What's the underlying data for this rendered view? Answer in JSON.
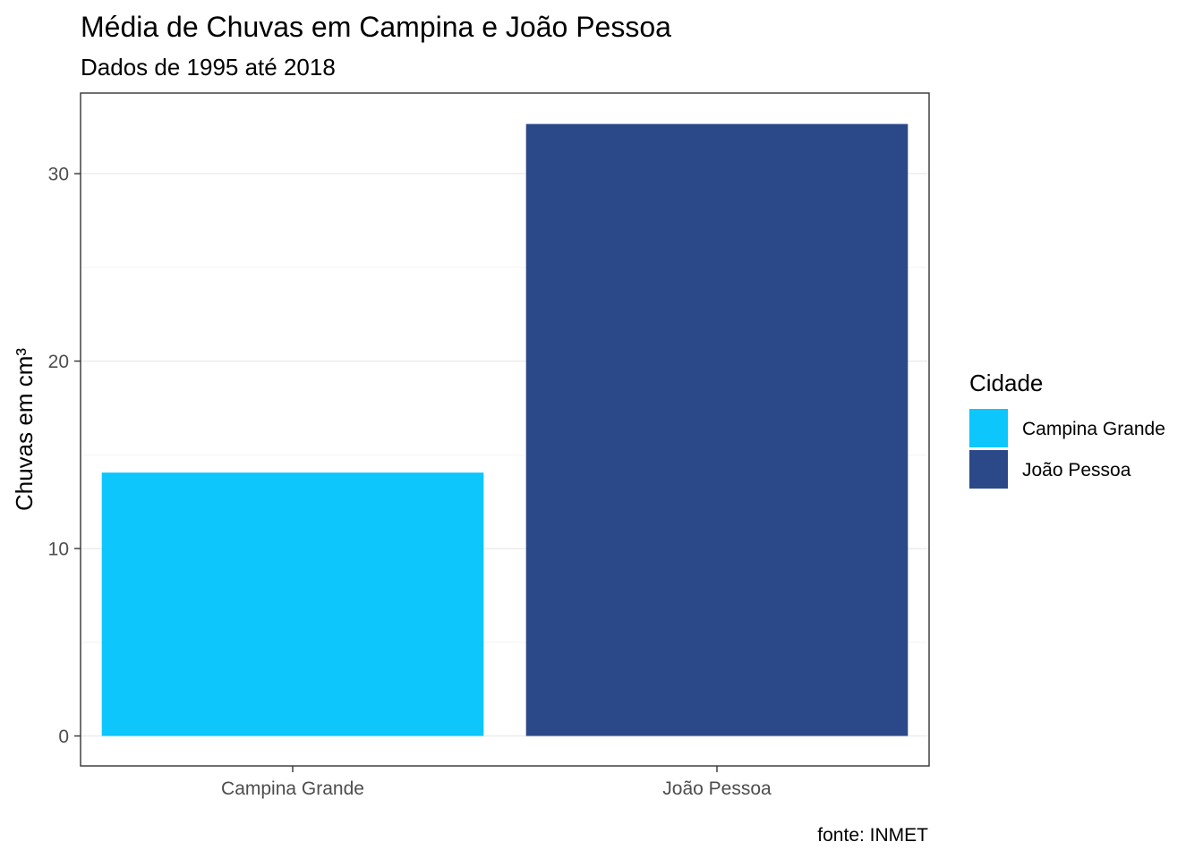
{
  "chart_data": {
    "type": "bar",
    "title": "Média de Chuvas em Campina e João Pessoa",
    "subtitle": "Dados de 1995 até 2018",
    "caption": "fonte: INMET",
    "xlabel": "",
    "ylabel": "Chuvas em cm³",
    "categories": [
      "Campina Grande",
      "João Pessoa"
    ],
    "values": [
      14.05,
      32.65
    ],
    "colors": [
      "#0CC6FC",
      "#2B4888"
    ],
    "ylim": [
      -1.6,
      34.3
    ],
    "yticks": [
      0,
      10,
      20,
      30
    ],
    "ytick_labels": [
      "0",
      "10",
      "20",
      "30"
    ],
    "y_minor_ticks": [
      5,
      15,
      25
    ],
    "grid": true,
    "legend": {
      "title": "Cidade",
      "position": "right",
      "entries": [
        {
          "label": "Campina Grande",
          "color": "#0CC6FC"
        },
        {
          "label": "João Pessoa",
          "color": "#2B4888"
        }
      ]
    }
  }
}
